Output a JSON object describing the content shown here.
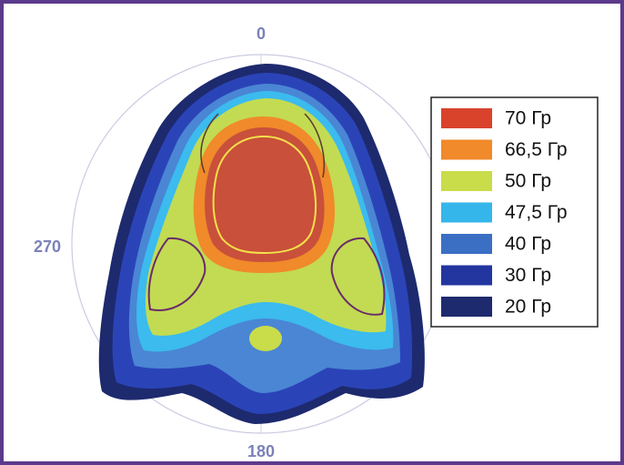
{
  "angle_labels": [
    "0",
    "270",
    "180"
  ],
  "legend": [
    {
      "label": "70 Гр",
      "color": "#d9432c"
    },
    {
      "label": "66,5 Гр",
      "color": "#f08a2a"
    },
    {
      "label": "50 Гр",
      "color": "#c9dc4a"
    },
    {
      "label": "47,5 Гр",
      "color": "#35b6ea"
    },
    {
      "label": "40 Гр",
      "color": "#3a6fc4"
    },
    {
      "label": "30 Гр",
      "color": "#2336a0"
    },
    {
      "label": "20 Гр",
      "color": "#1e2a6e"
    }
  ]
}
